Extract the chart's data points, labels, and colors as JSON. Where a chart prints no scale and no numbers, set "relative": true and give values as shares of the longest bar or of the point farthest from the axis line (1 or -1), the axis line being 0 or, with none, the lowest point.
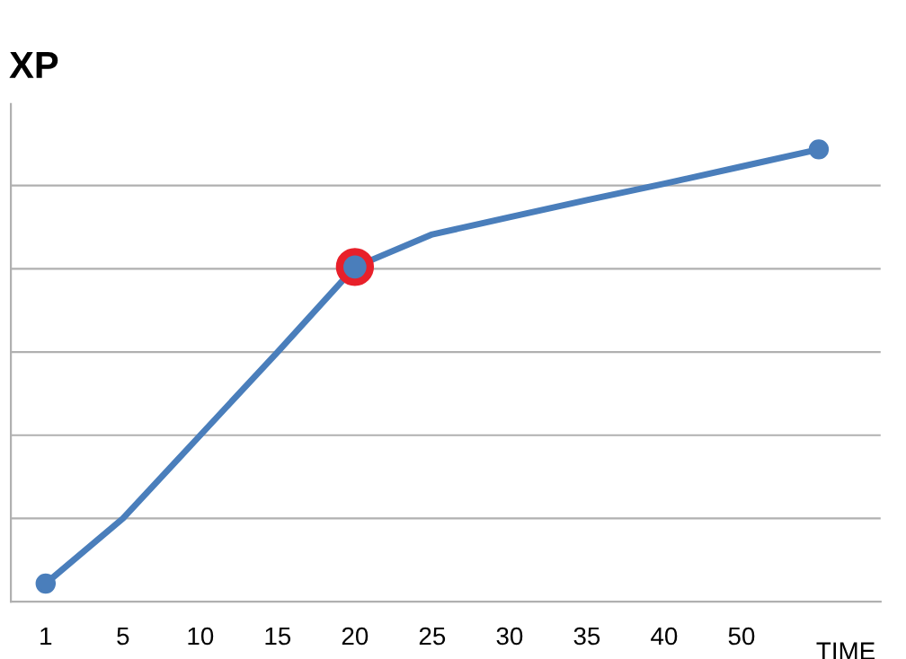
{
  "chart_data": {
    "type": "line",
    "title": "XP",
    "xlabel": "TIME",
    "relative": true,
    "grid": "y",
    "legend": false,
    "categories": [
      "1",
      "5",
      "10",
      "15",
      "20",
      "25",
      "30",
      "35",
      "40",
      "50",
      null
    ],
    "series": [
      {
        "color": "#4a7ebb",
        "marker": "none",
        "values": [
          0.04,
          0.184,
          0.368,
          0.552,
          0.74,
          0.812,
          0.85,
          0.888,
          0.924,
          0.962,
          1
        ]
      },
      {
        "type": "scatter",
        "color": "#4a7ebb",
        "marker": "circle",
        "values": [
          0.04,
          null,
          null,
          null,
          null,
          null,
          null,
          null,
          null,
          null,
          1
        ]
      },
      {
        "type": "scatter",
        "color": "#e8202a",
        "marker": "circle",
        "values": [
          null,
          null,
          null,
          null,
          0.74,
          null,
          null,
          null,
          null,
          null,
          null
        ]
      }
    ]
  }
}
